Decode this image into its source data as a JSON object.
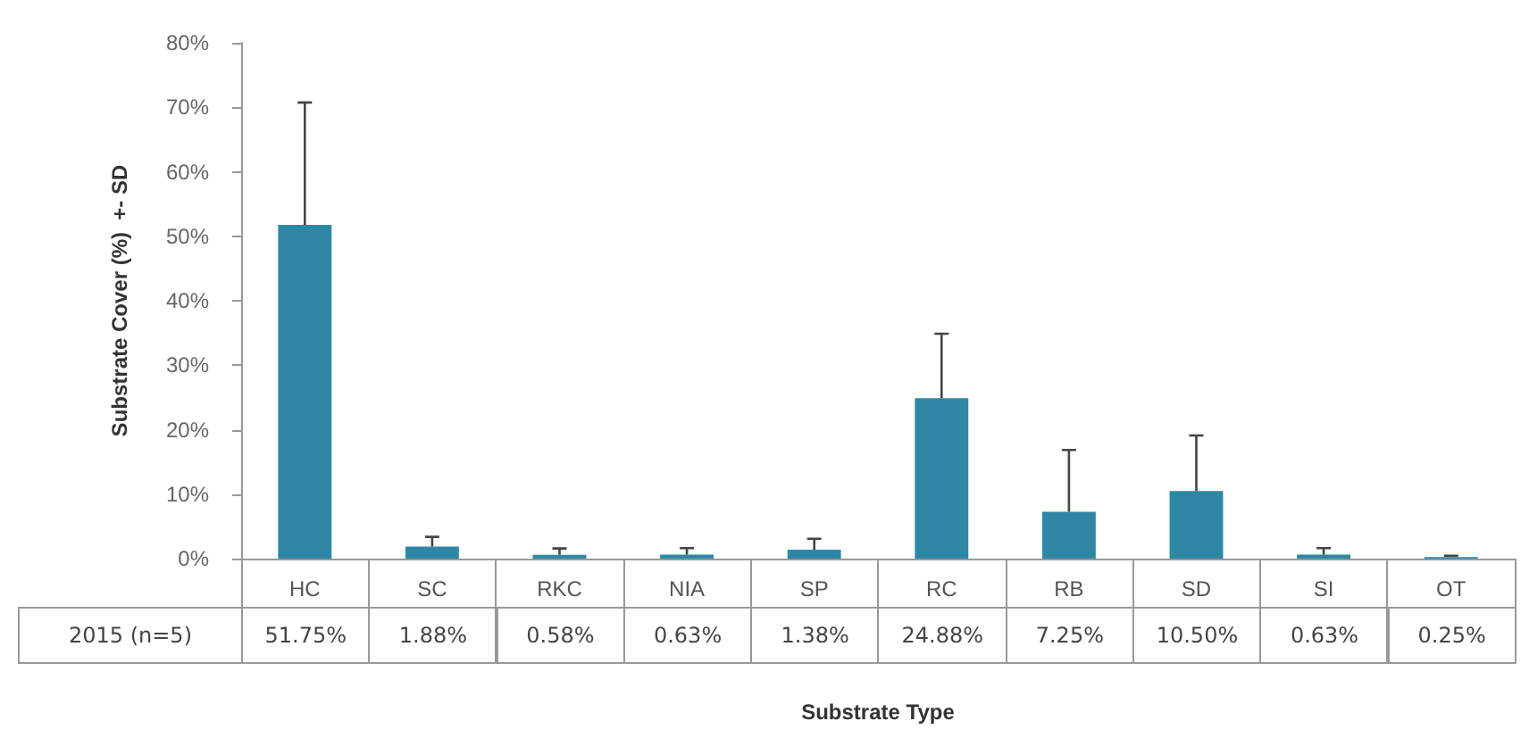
{
  "chart_data": {
    "type": "bar",
    "xlabel": "Substrate Type",
    "ylabel": "Substrate Cover (%)  +- SD",
    "categories": [
      "HC",
      "SC",
      "RKC",
      "NIA",
      "SP",
      "RC",
      "RB",
      "SD",
      "SI",
      "OT"
    ],
    "series": [
      {
        "name": "2015 (n=5)",
        "color": "#2e87a5",
        "values": [
          51.75,
          1.88,
          0.58,
          0.63,
          1.38,
          24.88,
          7.25,
          10.5,
          0.63,
          0.25
        ],
        "errors": [
          19,
          1.5,
          1,
          1,
          1.7,
          10,
          9.6,
          8.6,
          1,
          0.2
        ],
        "value_labels": [
          "51.75%",
          "1.88%",
          "0.58%",
          "0.63%",
          "1.38%",
          "24.88%",
          "7.25%",
          "10.50%",
          "0.63%",
          "0.25%"
        ]
      }
    ],
    "ylim": [
      0,
      80
    ],
    "yticks": [
      {
        "value": 0,
        "label": "0%"
      },
      {
        "value": 10,
        "label": "10%"
      },
      {
        "value": 20,
        "label": "20%"
      },
      {
        "value": 30,
        "label": "30%"
      },
      {
        "value": 40,
        "label": "40%"
      },
      {
        "value": 50,
        "label": "50%"
      },
      {
        "value": 60,
        "label": "60%"
      },
      {
        "value": 70,
        "label": "70%"
      },
      {
        "value": 80,
        "label": "80%"
      }
    ],
    "grid": false,
    "legend": false
  }
}
